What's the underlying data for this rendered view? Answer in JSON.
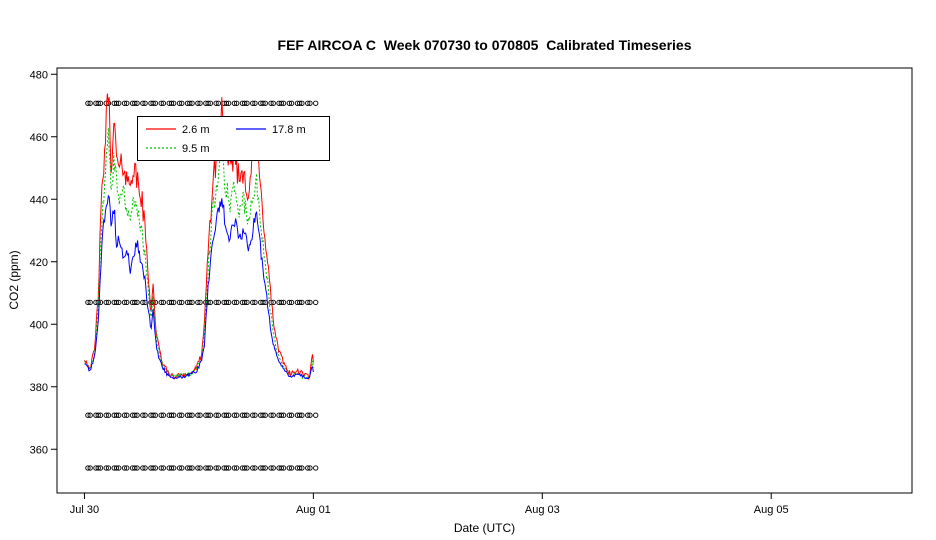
{
  "window": {
    "background": "#ffffff"
  },
  "chart_data": {
    "type": "line",
    "title": "FEF AIRCOA C  Week 070730 to 070805  Calibrated Timeseries",
    "xlabel": "Date (UTC)",
    "ylabel": "CO2 (ppm)",
    "x_ticks": [
      {
        "t": 0,
        "label": "Jul 30"
      },
      {
        "t": 2,
        "label": "Aug 01"
      },
      {
        "t": 4,
        "label": "Aug 03"
      },
      {
        "t": 6,
        "label": "Aug 05"
      }
    ],
    "y_ticks": [
      360,
      380,
      400,
      420,
      440,
      460,
      480
    ],
    "x_range_days": [
      -0.24,
      7.23
    ],
    "y_range": [
      346,
      482
    ],
    "time_unit": "days since Jul 30 00:00 UTC",
    "grid": false,
    "legend_position": "top-left-inset",
    "series": [
      {
        "name": "2.6 m",
        "color": "#ff0000",
        "style": "solid",
        "noise_amplitude": 6,
        "anchors": [
          [
            0,
            389
          ],
          [
            0.05,
            386
          ],
          [
            0.09,
            392
          ],
          [
            0.12,
            410
          ],
          [
            0.15,
            440
          ],
          [
            0.18,
            458
          ],
          [
            0.21,
            476
          ],
          [
            0.23,
            452
          ],
          [
            0.26,
            462
          ],
          [
            0.3,
            448
          ],
          [
            0.34,
            452
          ],
          [
            0.38,
            444
          ],
          [
            0.42,
            450
          ],
          [
            0.46,
            446
          ],
          [
            0.5,
            440
          ],
          [
            0.53,
            430
          ],
          [
            0.56,
            415
          ],
          [
            0.58,
            404
          ],
          [
            0.6,
            412
          ],
          [
            0.63,
            396
          ],
          [
            0.67,
            389
          ],
          [
            0.72,
            385
          ],
          [
            0.78,
            383
          ],
          [
            0.85,
            384
          ],
          [
            0.92,
            384
          ],
          [
            0.98,
            386
          ],
          [
            1.02,
            390
          ],
          [
            1.05,
            400
          ],
          [
            1.08,
            424
          ],
          [
            1.12,
            444
          ],
          [
            1.16,
            456
          ],
          [
            1.2,
            470
          ],
          [
            1.23,
            455
          ],
          [
            1.27,
            448
          ],
          [
            1.31,
            456
          ],
          [
            1.35,
            446
          ],
          [
            1.39,
            450
          ],
          [
            1.43,
            442
          ],
          [
            1.47,
            452
          ],
          [
            1.5,
            459
          ],
          [
            1.54,
            442
          ],
          [
            1.58,
            428
          ],
          [
            1.62,
            412
          ],
          [
            1.66,
            398
          ],
          [
            1.7,
            391
          ],
          [
            1.75,
            387
          ],
          [
            1.8,
            384
          ],
          [
            1.86,
            385
          ],
          [
            1.92,
            384
          ],
          [
            1.97,
            383
          ],
          [
            1.99,
            391
          ],
          [
            2,
            387
          ]
        ]
      },
      {
        "name": "9.5 m",
        "color": "#00c000",
        "style": "dotted",
        "noise_amplitude": 5,
        "anchors": [
          [
            0,
            388
          ],
          [
            0.05,
            386
          ],
          [
            0.09,
            391
          ],
          [
            0.12,
            405
          ],
          [
            0.15,
            432
          ],
          [
            0.18,
            448
          ],
          [
            0.21,
            462
          ],
          [
            0.23,
            445
          ],
          [
            0.26,
            452
          ],
          [
            0.3,
            438
          ],
          [
            0.34,
            442
          ],
          [
            0.38,
            434
          ],
          [
            0.42,
            438
          ],
          [
            0.46,
            436
          ],
          [
            0.5,
            430
          ],
          [
            0.53,
            422
          ],
          [
            0.56,
            410
          ],
          [
            0.58,
            402
          ],
          [
            0.6,
            408
          ],
          [
            0.63,
            394
          ],
          [
            0.67,
            388
          ],
          [
            0.72,
            385
          ],
          [
            0.78,
            383
          ],
          [
            0.85,
            384
          ],
          [
            0.92,
            384
          ],
          [
            0.98,
            386
          ],
          [
            1.02,
            389
          ],
          [
            1.05,
            397
          ],
          [
            1.08,
            418
          ],
          [
            1.12,
            436
          ],
          [
            1.16,
            446
          ],
          [
            1.2,
            456
          ],
          [
            1.23,
            445
          ],
          [
            1.27,
            438
          ],
          [
            1.31,
            444
          ],
          [
            1.35,
            436
          ],
          [
            1.39,
            440
          ],
          [
            1.43,
            432
          ],
          [
            1.47,
            440
          ],
          [
            1.5,
            446
          ],
          [
            1.54,
            432
          ],
          [
            1.58,
            420
          ],
          [
            1.62,
            406
          ],
          [
            1.66,
            395
          ],
          [
            1.7,
            389
          ],
          [
            1.75,
            386
          ],
          [
            1.8,
            384
          ],
          [
            1.86,
            384
          ],
          [
            1.92,
            383
          ],
          [
            1.97,
            383
          ],
          [
            1.99,
            388
          ],
          [
            2,
            386
          ]
        ]
      },
      {
        "name": "17.8 m",
        "color": "#0000ff",
        "style": "solid",
        "noise_amplitude": 4,
        "anchors": [
          [
            0,
            388
          ],
          [
            0.05,
            385
          ],
          [
            0.09,
            390
          ],
          [
            0.12,
            400
          ],
          [
            0.15,
            424
          ],
          [
            0.18,
            436
          ],
          [
            0.21,
            443
          ],
          [
            0.23,
            432
          ],
          [
            0.26,
            438
          ],
          [
            0.28,
            425
          ],
          [
            0.31,
            428
          ],
          [
            0.34,
            420
          ],
          [
            0.37,
            424
          ],
          [
            0.4,
            418
          ],
          [
            0.43,
            422
          ],
          [
            0.46,
            426
          ],
          [
            0.5,
            420
          ],
          [
            0.53,
            414
          ],
          [
            0.56,
            404
          ],
          [
            0.58,
            398
          ],
          [
            0.6,
            404
          ],
          [
            0.63,
            392
          ],
          [
            0.67,
            387
          ],
          [
            0.72,
            384
          ],
          [
            0.78,
            383
          ],
          [
            0.85,
            383
          ],
          [
            0.92,
            384
          ],
          [
            0.98,
            385
          ],
          [
            1.02,
            388
          ],
          [
            1.05,
            394
          ],
          [
            1.08,
            412
          ],
          [
            1.12,
            428
          ],
          [
            1.16,
            434
          ],
          [
            1.2,
            440
          ],
          [
            1.23,
            432
          ],
          [
            1.27,
            428
          ],
          [
            1.31,
            434
          ],
          [
            1.35,
            426
          ],
          [
            1.39,
            430
          ],
          [
            1.43,
            424
          ],
          [
            1.47,
            430
          ],
          [
            1.5,
            436
          ],
          [
            1.54,
            424
          ],
          [
            1.58,
            412
          ],
          [
            1.62,
            400
          ],
          [
            1.66,
            392
          ],
          [
            1.7,
            388
          ],
          [
            1.75,
            385
          ],
          [
            1.8,
            383
          ],
          [
            1.86,
            384
          ],
          [
            1.92,
            383
          ],
          [
            1.97,
            383
          ],
          [
            1.99,
            387
          ],
          [
            2,
            385
          ]
        ]
      }
    ],
    "calibration_circles": {
      "marker": "open-circle",
      "levels_ppm": [
        470.7,
        407.0,
        370.9,
        354.0
      ],
      "times_days": [
        0.03,
        0.05,
        0.1,
        0.12,
        0.14,
        0.19,
        0.21,
        0.26,
        0.28,
        0.3,
        0.35,
        0.37,
        0.42,
        0.44,
        0.46,
        0.51,
        0.53,
        0.58,
        0.6,
        0.62,
        0.67,
        0.69,
        0.74,
        0.76,
        0.78,
        0.83,
        0.85,
        0.9,
        0.92,
        0.94,
        0.99,
        1.01,
        1.06,
        1.08,
        1.1,
        1.15,
        1.17,
        1.22,
        1.24,
        1.26,
        1.31,
        1.33,
        1.38,
        1.4,
        1.42,
        1.47,
        1.49,
        1.54,
        1.56,
        1.58,
        1.63,
        1.65,
        1.7,
        1.72,
        1.74,
        1.79,
        1.81,
        1.86,
        1.88,
        1.9,
        1.95,
        1.97,
        2.02
      ]
    }
  }
}
